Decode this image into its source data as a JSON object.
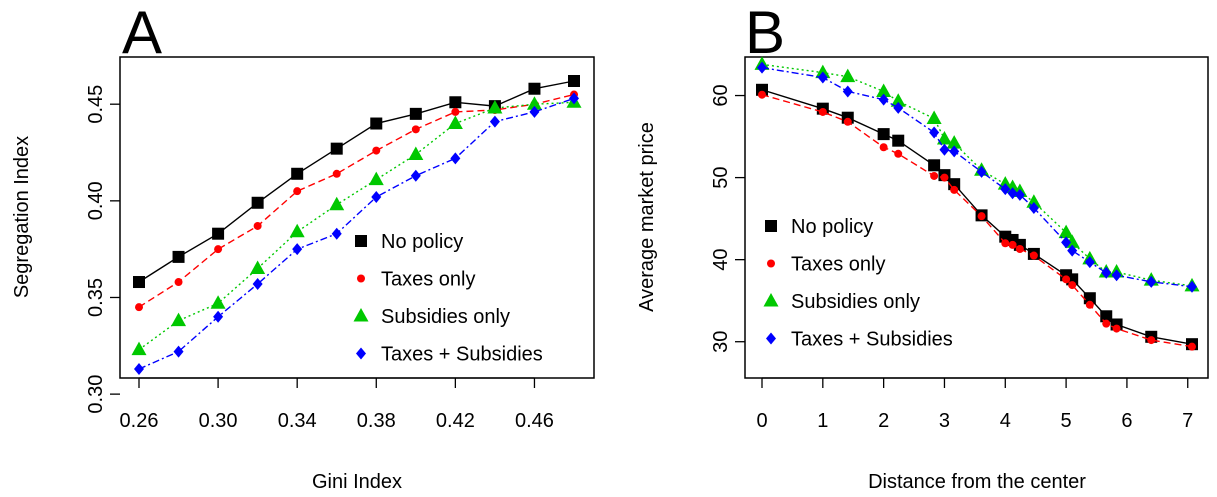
{
  "colors": {
    "no_policy": "#000000",
    "taxes_only": "#ff0000",
    "subsidies_only": "#00c800",
    "taxes_subsidies": "#0000ff"
  },
  "chart_data": [
    {
      "type": "line",
      "panel_label": "A",
      "xlabel": "Gini Index",
      "ylabel": "Segregation Index",
      "xlim": [
        0.26,
        0.48
      ],
      "ylim": [
        0.313,
        0.462
      ],
      "x_ticks": [
        "0.26",
        "0.30",
        "0.34",
        "0.38",
        "0.42",
        "0.46"
      ],
      "y_ticks": [
        "0.30",
        "0.35",
        "0.40",
        "0.45"
      ],
      "grid": false,
      "legend_position": "bottom-right",
      "x": [
        0.26,
        0.28,
        0.3,
        0.32,
        0.34,
        0.36,
        0.38,
        0.4,
        0.42,
        0.44,
        0.46,
        0.48
      ],
      "series": [
        {
          "name": "No policy",
          "marker": "square",
          "line": "solid",
          "color": "#000000",
          "values": [
            0.358,
            0.371,
            0.383,
            0.399,
            0.414,
            0.427,
            0.44,
            0.445,
            0.451,
            0.449,
            0.458,
            0.462
          ]
        },
        {
          "name": "Taxes only",
          "marker": "circle",
          "line": "dashed",
          "color": "#ff0000",
          "values": [
            0.345,
            0.358,
            0.375,
            0.387,
            0.405,
            0.414,
            0.426,
            0.437,
            0.446,
            0.447,
            0.45,
            0.455
          ]
        },
        {
          "name": "Subsidies only",
          "marker": "triangle",
          "line": "dotted",
          "color": "#00c800",
          "values": [
            0.323,
            0.338,
            0.347,
            0.365,
            0.384,
            0.398,
            0.411,
            0.424,
            0.44,
            0.448,
            0.45,
            0.451
          ]
        },
        {
          "name": "Taxes + Subsidies",
          "marker": "diamond",
          "line": "dashdot",
          "color": "#0000ff",
          "values": [
            0.313,
            0.322,
            0.34,
            0.357,
            0.375,
            0.383,
            0.402,
            0.413,
            0.422,
            0.441,
            0.446,
            0.453
          ]
        }
      ]
    },
    {
      "type": "line",
      "panel_label": "B",
      "xlabel": "Distance from the center",
      "ylabel": "Average market price",
      "xlim": [
        0,
        7.07
      ],
      "ylim": [
        29.6,
        63.6
      ],
      "x_ticks": [
        "0",
        "1",
        "2",
        "3",
        "4",
        "5",
        "6",
        "7"
      ],
      "y_ticks": [
        "30",
        "40",
        "50",
        "60"
      ],
      "grid": false,
      "legend_position": "bottom-left",
      "x": [
        0,
        1,
        1.41,
        2,
        2.24,
        2.83,
        3,
        3.16,
        3.61,
        4,
        4.12,
        4.24,
        4.47,
        5,
        5.1,
        5.39,
        5.66,
        5.83,
        6.4,
        7.07
      ],
      "series": [
        {
          "name": "No policy",
          "marker": "square",
          "line": "solid",
          "color": "#000000",
          "values": [
            60.7,
            58.4,
            57.3,
            55.3,
            54.5,
            51.5,
            50.3,
            49.2,
            45.4,
            42.8,
            42.4,
            41.8,
            40.7,
            38.1,
            37.6,
            35.3,
            33.1,
            32.1,
            30.6,
            29.7
          ]
        },
        {
          "name": "Taxes only",
          "marker": "circle",
          "line": "dashed",
          "color": "#ff0000",
          "values": [
            60.1,
            58.0,
            56.8,
            53.7,
            52.9,
            50.2,
            50.0,
            48.5,
            45.3,
            42.0,
            41.8,
            41.3,
            40.5,
            37.6,
            36.9,
            34.5,
            32.2,
            31.6,
            30.2,
            29.4
          ]
        },
        {
          "name": "Subsidies only",
          "marker": "triangle",
          "line": "dotted",
          "color": "#00c800",
          "values": [
            63.8,
            62.8,
            62.3,
            60.5,
            59.3,
            57.2,
            54.7,
            54.2,
            50.9,
            49.2,
            48.8,
            48.3,
            47.0,
            43.3,
            42.1,
            40.1,
            38.5,
            38.5,
            37.5,
            36.8
          ]
        },
        {
          "name": "Taxes + Subsidies",
          "marker": "diamond",
          "line": "dashdot",
          "color": "#0000ff",
          "values": [
            63.4,
            62.2,
            60.5,
            59.5,
            58.5,
            55.5,
            53.4,
            53.2,
            50.7,
            48.6,
            48.1,
            47.9,
            46.3,
            42.1,
            41.1,
            39.7,
            38.4,
            38.1,
            37.3,
            36.7
          ]
        }
      ]
    }
  ]
}
